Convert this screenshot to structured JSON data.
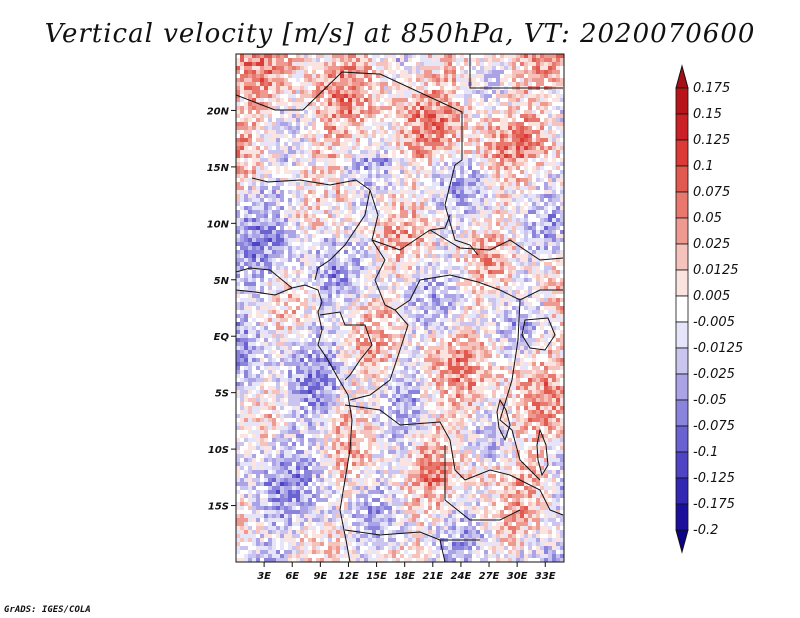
{
  "chart_data": {
    "type": "heatmap",
    "title": "Vertical velocity [m/s] at 850hPa, VT: 2020070600",
    "variable": "Vertical velocity",
    "units": "m/s",
    "level": "850hPa",
    "valid_time": "2020070600",
    "x_ticks": [
      "3E",
      "6E",
      "9E",
      "12E",
      "15E",
      "18E",
      "21E",
      "24E",
      "27E",
      "30E",
      "33E"
    ],
    "x_tick_values": [
      3,
      6,
      9,
      12,
      15,
      18,
      21,
      24,
      27,
      30,
      33
    ],
    "y_ticks": [
      "20N",
      "15N",
      "10N",
      "5N",
      "EQ",
      "5S",
      "10S",
      "15S"
    ],
    "y_tick_values": [
      20,
      15,
      10,
      5,
      0,
      -5,
      -10,
      -15
    ],
    "xlim": [
      0,
      35
    ],
    "ylim": [
      -20,
      25
    ],
    "colorbar_levels": [
      "0.175",
      "0.15",
      "0.125",
      "0.1",
      "0.075",
      "0.05",
      "0.025",
      "0.0125",
      "0.005",
      "-0.005",
      "-0.0125",
      "-0.025",
      "-0.05",
      "-0.075",
      "-0.1",
      "-0.125",
      "-0.175",
      "-0.2"
    ],
    "colorbar_colors": [
      "#a50f15",
      "#b8151b",
      "#cb2026",
      "#dc3a36",
      "#e25a4f",
      "#e8786d",
      "#ef9a91",
      "#f5c3bc",
      "#fbe3df",
      "#ffffff",
      "#e6e4f8",
      "#c9c5ef",
      "#aaa4e6",
      "#8b84dc",
      "#6b62d1",
      "#4e44c4",
      "#3328b3",
      "#1c0f9c",
      "#0c0387"
    ]
  },
  "credit": "GrADS: IGES/COLA"
}
